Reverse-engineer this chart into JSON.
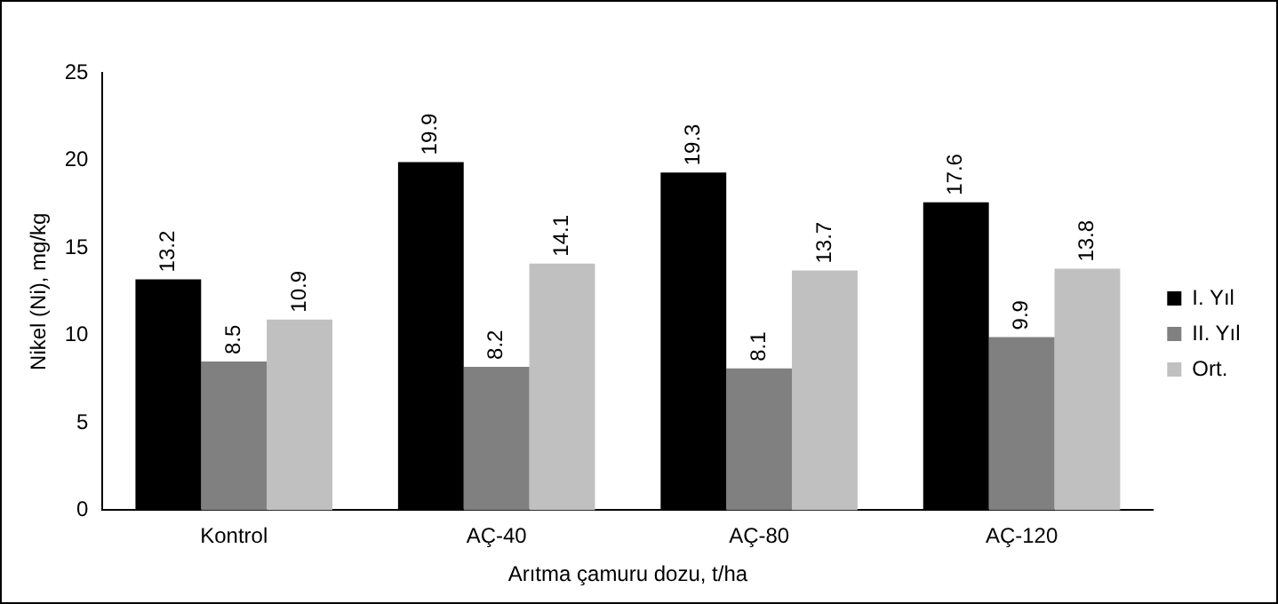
{
  "chart_data": {
    "type": "bar",
    "xlabel": "Arıtma çamuru dozu, t/ha",
    "ylabel": "Nikel (Ni), mg/kg",
    "categories": [
      "Kontrol",
      "AÇ-40",
      "AÇ-80",
      "AÇ-120"
    ],
    "series": [
      {
        "name": "I. Yıl",
        "color": "#000000",
        "values": [
          13.2,
          19.9,
          19.3,
          17.6
        ]
      },
      {
        "name": "II. Yıl",
        "color": "#808080",
        "values": [
          8.5,
          8.2,
          8.1,
          9.9
        ]
      },
      {
        "name": "Ort.",
        "color": "#c0c0c0",
        "values": [
          10.9,
          14.1,
          13.7,
          13.8
        ]
      }
    ],
    "ylim": [
      0,
      25
    ],
    "yticks": [
      0,
      5,
      10,
      15,
      20,
      25
    ],
    "grid": false,
    "legend": "right",
    "data_labels": true
  }
}
